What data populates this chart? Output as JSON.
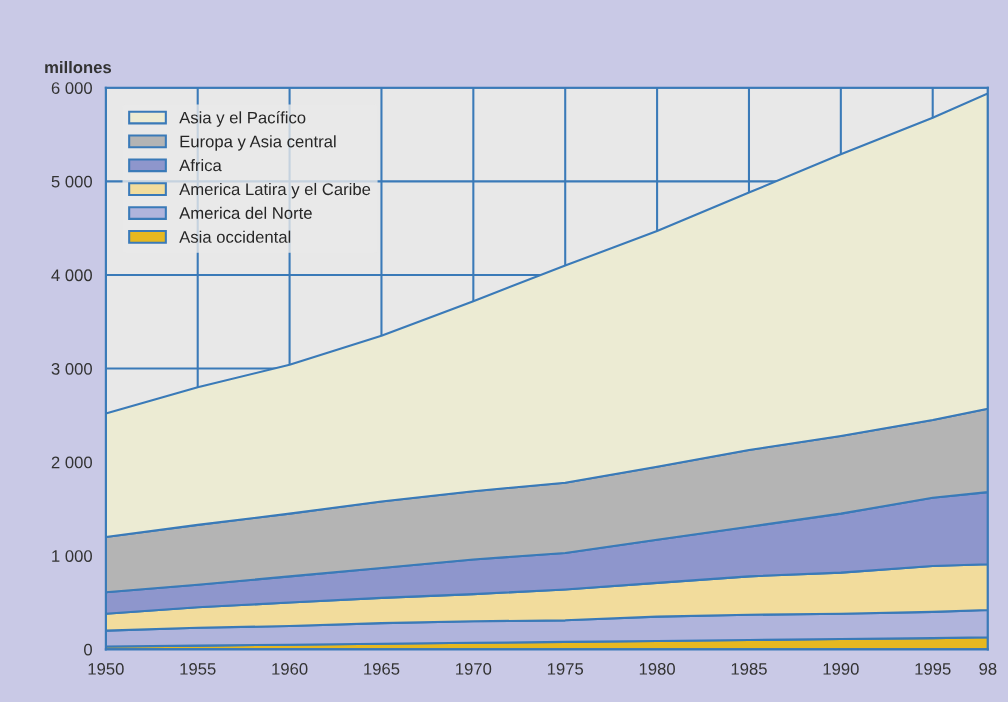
{
  "chart_data": {
    "type": "area",
    "stacked": true,
    "ylabel": "millones",
    "x": [
      1950,
      1955,
      1960,
      1965,
      1970,
      1975,
      1980,
      1985,
      1990,
      1995,
      1998
    ],
    "series": [
      {
        "name": "Asia occidental",
        "color": "#e6b820",
        "values": [
          30,
          40,
          50,
          60,
          70,
          80,
          90,
          100,
          110,
          120,
          130
        ]
      },
      {
        "name": "America del Norte",
        "color": "#b0b4dc",
        "values": [
          170,
          190,
          200,
          220,
          230,
          230,
          260,
          270,
          270,
          280,
          290
        ]
      },
      {
        "name": "America Latira y el Caribe",
        "color": "#f2dc9c",
        "values": [
          180,
          220,
          250,
          270,
          290,
          330,
          360,
          410,
          440,
          490,
          490
        ]
      },
      {
        "name": "Africa",
        "color": "#8e96cc",
        "values": [
          230,
          240,
          280,
          320,
          370,
          390,
          460,
          530,
          630,
          730,
          770
        ]
      },
      {
        "name": "Europa y Asia central",
        "color": "#b4b4b4",
        "values": [
          590,
          640,
          670,
          710,
          730,
          750,
          780,
          820,
          830,
          830,
          890
        ]
      },
      {
        "name": "Asia y el Pacífico",
        "color": "#ecebd3",
        "values": [
          1320,
          1470,
          1590,
          1770,
          2030,
          2320,
          2520,
          2750,
          3010,
          3230,
          3370
        ]
      }
    ],
    "xlim": [
      1950,
      1998
    ],
    "xticks": [
      1950,
      1955,
      1960,
      1965,
      1970,
      1975,
      1980,
      1985,
      1990,
      1995,
      {
        "value": 1998,
        "label": "98"
      }
    ],
    "ylim": [
      0,
      6000
    ],
    "yticks": [
      {
        "value": 0,
        "label": "0"
      },
      {
        "value": 1000,
        "label": "1 000"
      },
      {
        "value": 2000,
        "label": "2 000"
      },
      {
        "value": 3000,
        "label": "3 000"
      },
      {
        "value": 4000,
        "label": "4 000"
      },
      {
        "value": 5000,
        "label": "5 000"
      },
      {
        "value": 6000,
        "label": "6 000"
      }
    ],
    "grid": true,
    "legend": "top left"
  }
}
